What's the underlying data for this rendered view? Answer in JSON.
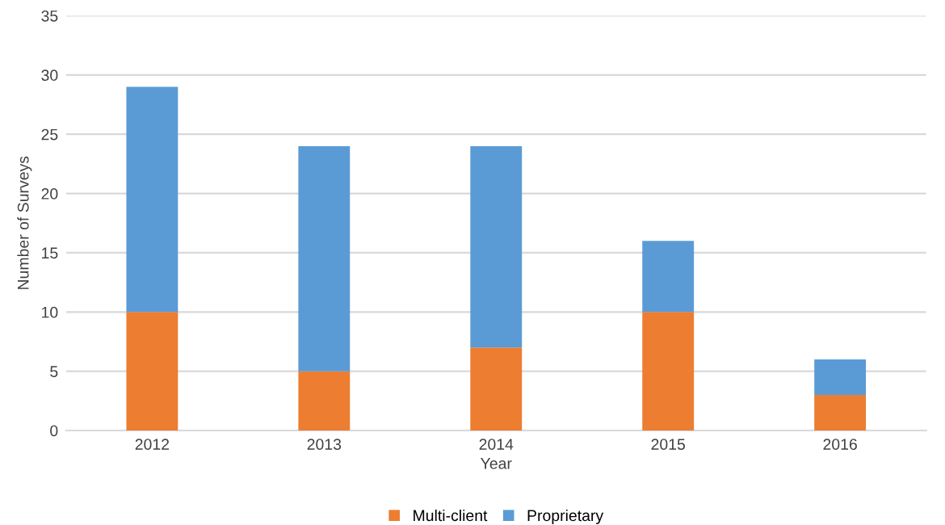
{
  "chart_data": {
    "type": "bar",
    "stacked": true,
    "xlabel": "Year",
    "ylabel": "Number of Surveys",
    "categories": [
      "2012",
      "2013",
      "2014",
      "2015",
      "2016"
    ],
    "series": [
      {
        "name": "Multi-client",
        "color": "#ed7d31",
        "values": [
          10,
          5,
          7,
          10,
          3
        ]
      },
      {
        "name": "Proprietary",
        "color": "#5b9bd5",
        "values": [
          19,
          19,
          17,
          6,
          3
        ]
      }
    ],
    "ylim": [
      0,
      35
    ],
    "yticks": [
      0,
      5,
      10,
      15,
      20,
      25,
      30,
      35
    ],
    "grid": "y",
    "legend": "bottom"
  }
}
